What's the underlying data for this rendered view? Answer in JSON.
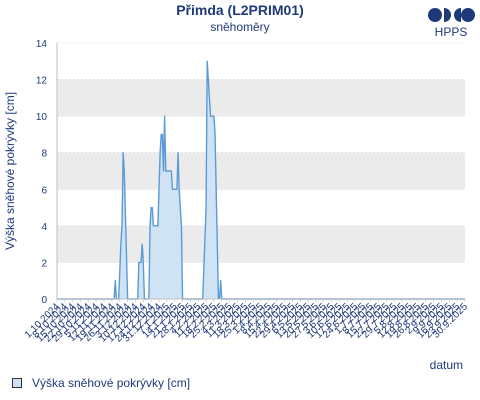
{
  "header": {
    "title": "Přimda (L2PRIM01)",
    "subtitle": "sněhoměry",
    "logo_text": "HPPS"
  },
  "colors": {
    "title": "#1f3a7a",
    "series_line": "#5b9bd5",
    "series_fill": "#cfe3f5",
    "band": "#ebebeb"
  },
  "chart_data": {
    "type": "area",
    "ylabel": "Výška sněhové pokrývky [cm]",
    "xlabel": "datum",
    "ylim": [
      0,
      14
    ],
    "yticks": [
      0,
      2,
      4,
      6,
      8,
      10,
      12,
      14
    ],
    "grid": true,
    "legend_position": "bottom-left",
    "x_ticks": [
      "1.10.2024",
      "8.10.2024",
      "15.10.2024",
      "22.10.2024",
      "29.10.2024",
      "5.11.2024",
      "12.11.2024",
      "19.11.2024",
      "26.11.2024",
      "3.12.2024",
      "10.12.2024",
      "17.12.2024",
      "24.12.2024",
      "31.12.2024",
      "7.1.2025",
      "14.1.2025",
      "21.1.2025",
      "28.1.2025",
      "4.2.2025",
      "11.2.2025",
      "18.2.2025",
      "25.2.2025",
      "4.3.2025",
      "11.3.2025",
      "18.3.2025",
      "25.3.2025",
      "1.4.2025",
      "8.4.2025",
      "15.4.2025",
      "22.4.2025",
      "29.4.2025",
      "6.5.2025",
      "13.5.2025",
      "20.5.2025",
      "27.5.2025",
      "3.6.2025",
      "10.6.2025",
      "17.6.2025",
      "24.6.2025",
      "1.7.2025",
      "8.7.2025",
      "15.7.2025",
      "22.7.2025",
      "29.7.2025",
      "5.8.2025",
      "12.8.2025",
      "19.8.2025",
      "26.8.2025",
      "2.9.2025",
      "9.9.2025",
      "16.9.2025",
      "23.9.2025",
      "30.9.2025"
    ],
    "series": [
      {
        "name": "Výška sněhové pokrývky [cm]",
        "points": [
          [
            "2024-10-01",
            0
          ],
          [
            "2024-11-21",
            0
          ],
          [
            "2024-11-22",
            1
          ],
          [
            "2024-11-23",
            0
          ],
          [
            "2024-11-24",
            0
          ],
          [
            "2024-11-25",
            0
          ],
          [
            "2024-11-27",
            3
          ],
          [
            "2024-11-28",
            4
          ],
          [
            "2024-11-29",
            8
          ],
          [
            "2024-11-30",
            7
          ],
          [
            "2024-12-03",
            0
          ],
          [
            "2024-12-12",
            0
          ],
          [
            "2024-12-13",
            2
          ],
          [
            "2024-12-15",
            2
          ],
          [
            "2024-12-16",
            3
          ],
          [
            "2024-12-17",
            2
          ],
          [
            "2024-12-18",
            0
          ],
          [
            "2024-12-22",
            0
          ],
          [
            "2024-12-23",
            4
          ],
          [
            "2024-12-24",
            5
          ],
          [
            "2024-12-25",
            5
          ],
          [
            "2024-12-26",
            4
          ],
          [
            "2024-12-30",
            4
          ],
          [
            "2025-01-01",
            8
          ],
          [
            "2025-01-02",
            9
          ],
          [
            "2025-01-03",
            9
          ],
          [
            "2025-01-04",
            7
          ],
          [
            "2025-01-05",
            10
          ],
          [
            "2025-01-06",
            7
          ],
          [
            "2025-01-11",
            7
          ],
          [
            "2025-01-12",
            6
          ],
          [
            "2025-01-16",
            6
          ],
          [
            "2025-01-17",
            8
          ],
          [
            "2025-01-18",
            6
          ],
          [
            "2025-01-20",
            4
          ],
          [
            "2025-01-21",
            0
          ],
          [
            "2025-02-08",
            0
          ],
          [
            "2025-02-11",
            5
          ],
          [
            "2025-02-12",
            13
          ],
          [
            "2025-02-13",
            12
          ],
          [
            "2025-02-14",
            11
          ],
          [
            "2025-02-15",
            10
          ],
          [
            "2025-02-18",
            10
          ],
          [
            "2025-02-19",
            9
          ],
          [
            "2025-02-22",
            0
          ],
          [
            "2025-02-23",
            0
          ],
          [
            "2025-02-24",
            1
          ],
          [
            "2025-02-25",
            0
          ],
          [
            "2025-09-30",
            0
          ]
        ]
      }
    ]
  }
}
